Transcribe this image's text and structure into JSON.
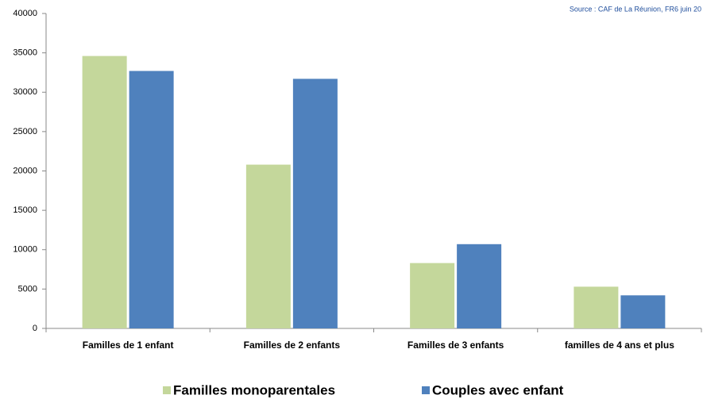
{
  "chart_data": {
    "type": "bar",
    "annotation": "Source : CAF de La Réunion, FR6 juin 20",
    "categories": [
      "Familles de 1 enfant",
      "Familles de 2 enfants",
      "Familles de 3 enfants",
      "familles de 4 ans  et plus"
    ],
    "series": [
      {
        "name": "Familles monoparentales",
        "color": "#c4d79b",
        "values": [
          34600,
          20800,
          8300,
          5300
        ]
      },
      {
        "name": "Couples avec enfant",
        "color": "#4f81bd",
        "values": [
          32700,
          31700,
          10700,
          4200
        ]
      }
    ],
    "ylim": [
      0,
      40000
    ],
    "yticks": [
      0,
      5000,
      10000,
      15000,
      20000,
      25000,
      30000,
      35000,
      40000
    ],
    "grid": false
  }
}
